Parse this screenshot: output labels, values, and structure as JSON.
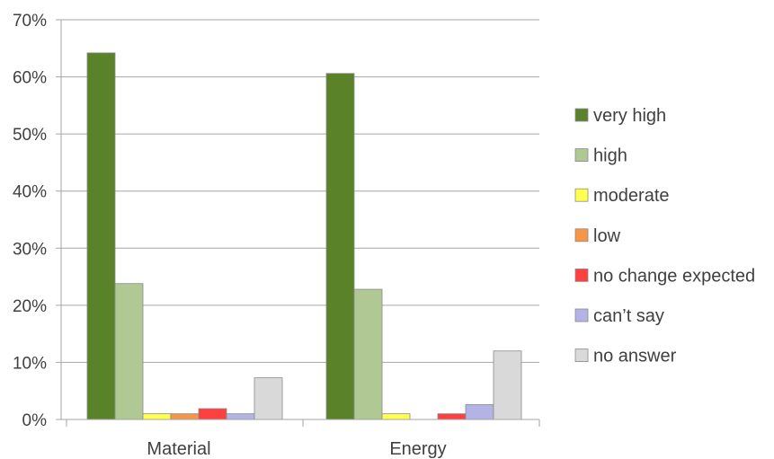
{
  "chart_data": {
    "type": "bar",
    "title": "",
    "xlabel": "",
    "ylabel": "",
    "categories": [
      "Material",
      "Energy"
    ],
    "ylim": [
      0,
      70
    ],
    "yticks": [
      "0%",
      "10%",
      "20%",
      "30%",
      "40%",
      "50%",
      "60%",
      "70%"
    ],
    "ytick_values": [
      0,
      10,
      20,
      30,
      40,
      50,
      60,
      70
    ],
    "grid": true,
    "legend_position": "right",
    "series": [
      {
        "name": "very high",
        "color": "#5a8228",
        "values": [
          64.2,
          60.6
        ]
      },
      {
        "name": "high",
        "color": "#b0c894",
        "values": [
          23.8,
          22.8
        ]
      },
      {
        "name": "moderate",
        "color": "#ffff4d",
        "values": [
          1.0,
          1.0
        ]
      },
      {
        "name": "low",
        "color": "#f79646",
        "values": [
          1.0,
          0
        ]
      },
      {
        "name": "no change expected",
        "color": "#ff4040",
        "values": [
          1.9,
          1.0
        ]
      },
      {
        "name": "can’t say",
        "color": "#b3b3e6",
        "values": [
          1.0,
          2.6
        ]
      },
      {
        "name": "no answer",
        "color": "#d9d9d9",
        "values": [
          7.3,
          12.0
        ]
      }
    ]
  }
}
